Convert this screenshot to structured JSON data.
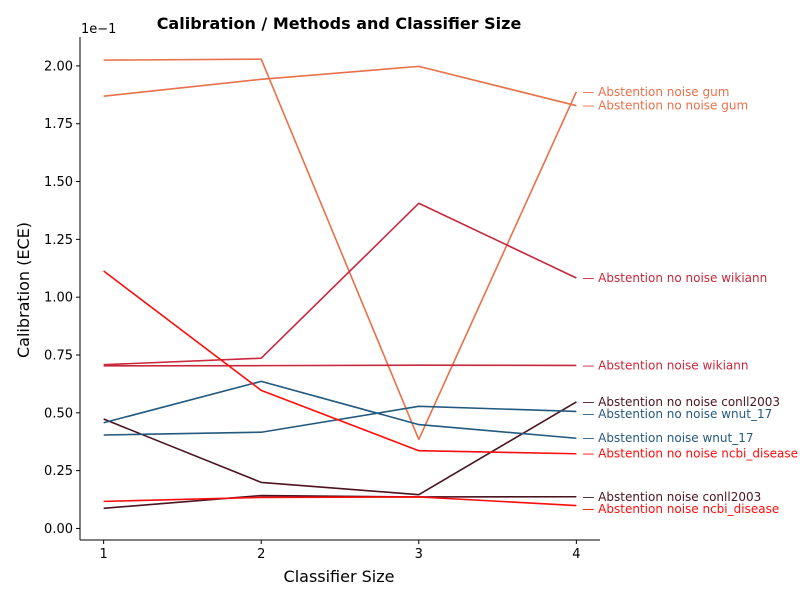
{
  "chart_data": {
    "type": "line",
    "title": "Calibration / Methods and Classifier Size",
    "xlabel": "Classifier Size",
    "ylabel": "Calibration (ECE)",
    "y_offset_label": "1e−1",
    "x": [
      1,
      2,
      3,
      4
    ],
    "x_tick_labels": [
      "1",
      "2",
      "3",
      "4"
    ],
    "xlim": [
      0.85,
      4.15
    ],
    "ylim": [
      -0.005,
      0.2125
    ],
    "y_ticks": [
      0.0,
      0.025,
      0.05,
      0.075,
      0.1,
      0.125,
      0.15,
      0.175,
      0.2
    ],
    "y_tick_labels": [
      "0.00",
      "0.25",
      "0.50",
      "0.75",
      "1.00",
      "1.25",
      "1.50",
      "1.75",
      "2.00"
    ],
    "grid": false,
    "legend": "inline labels at right end of each line",
    "series": [
      {
        "name": "Abstention noise gum",
        "color": "#e8704a",
        "values": [
          0.2025,
          0.2029,
          0.0385,
          0.1888
        ]
      },
      {
        "name": "Abstention no noise gum",
        "color": "#e8704a",
        "values": [
          0.1869,
          0.1942,
          0.1998,
          0.1828
        ]
      },
      {
        "name": "Abstention no noise wikiann",
        "color": "#c7283c",
        "values": [
          0.0708,
          0.0736,
          0.1406,
          0.1083
        ]
      },
      {
        "name": "Abstention noise wikiann",
        "color": "#c7283c",
        "values": [
          0.0703,
          0.0704,
          0.0706,
          0.0705
        ]
      },
      {
        "name": "Abstention no noise conll2003",
        "color": "#4a1420",
        "values": [
          0.0473,
          0.0199,
          0.0146,
          0.0547
        ]
      },
      {
        "name": "Abstention no noise wnut_17",
        "color": "#24597f",
        "values": [
          0.0404,
          0.0416,
          0.0528,
          0.0506
        ]
      },
      {
        "name": "Abstention noise wnut_17",
        "color": "#24597f",
        "values": [
          0.0457,
          0.0636,
          0.0449,
          0.039
        ]
      },
      {
        "name": "Abstention no noise ncbi_disease",
        "color": "#ff0d0d",
        "values": [
          0.1113,
          0.0597,
          0.0336,
          0.0323
        ]
      },
      {
        "name": "Abstention noise conll2003",
        "color": "#4a1420",
        "values": [
          0.0087,
          0.0142,
          0.0136,
          0.0137
        ]
      },
      {
        "name": "Abstention noise ncbi_disease",
        "color": "#ff0d0d",
        "values": [
          0.0117,
          0.0134,
          0.0136,
          0.0099
        ]
      }
    ]
  }
}
